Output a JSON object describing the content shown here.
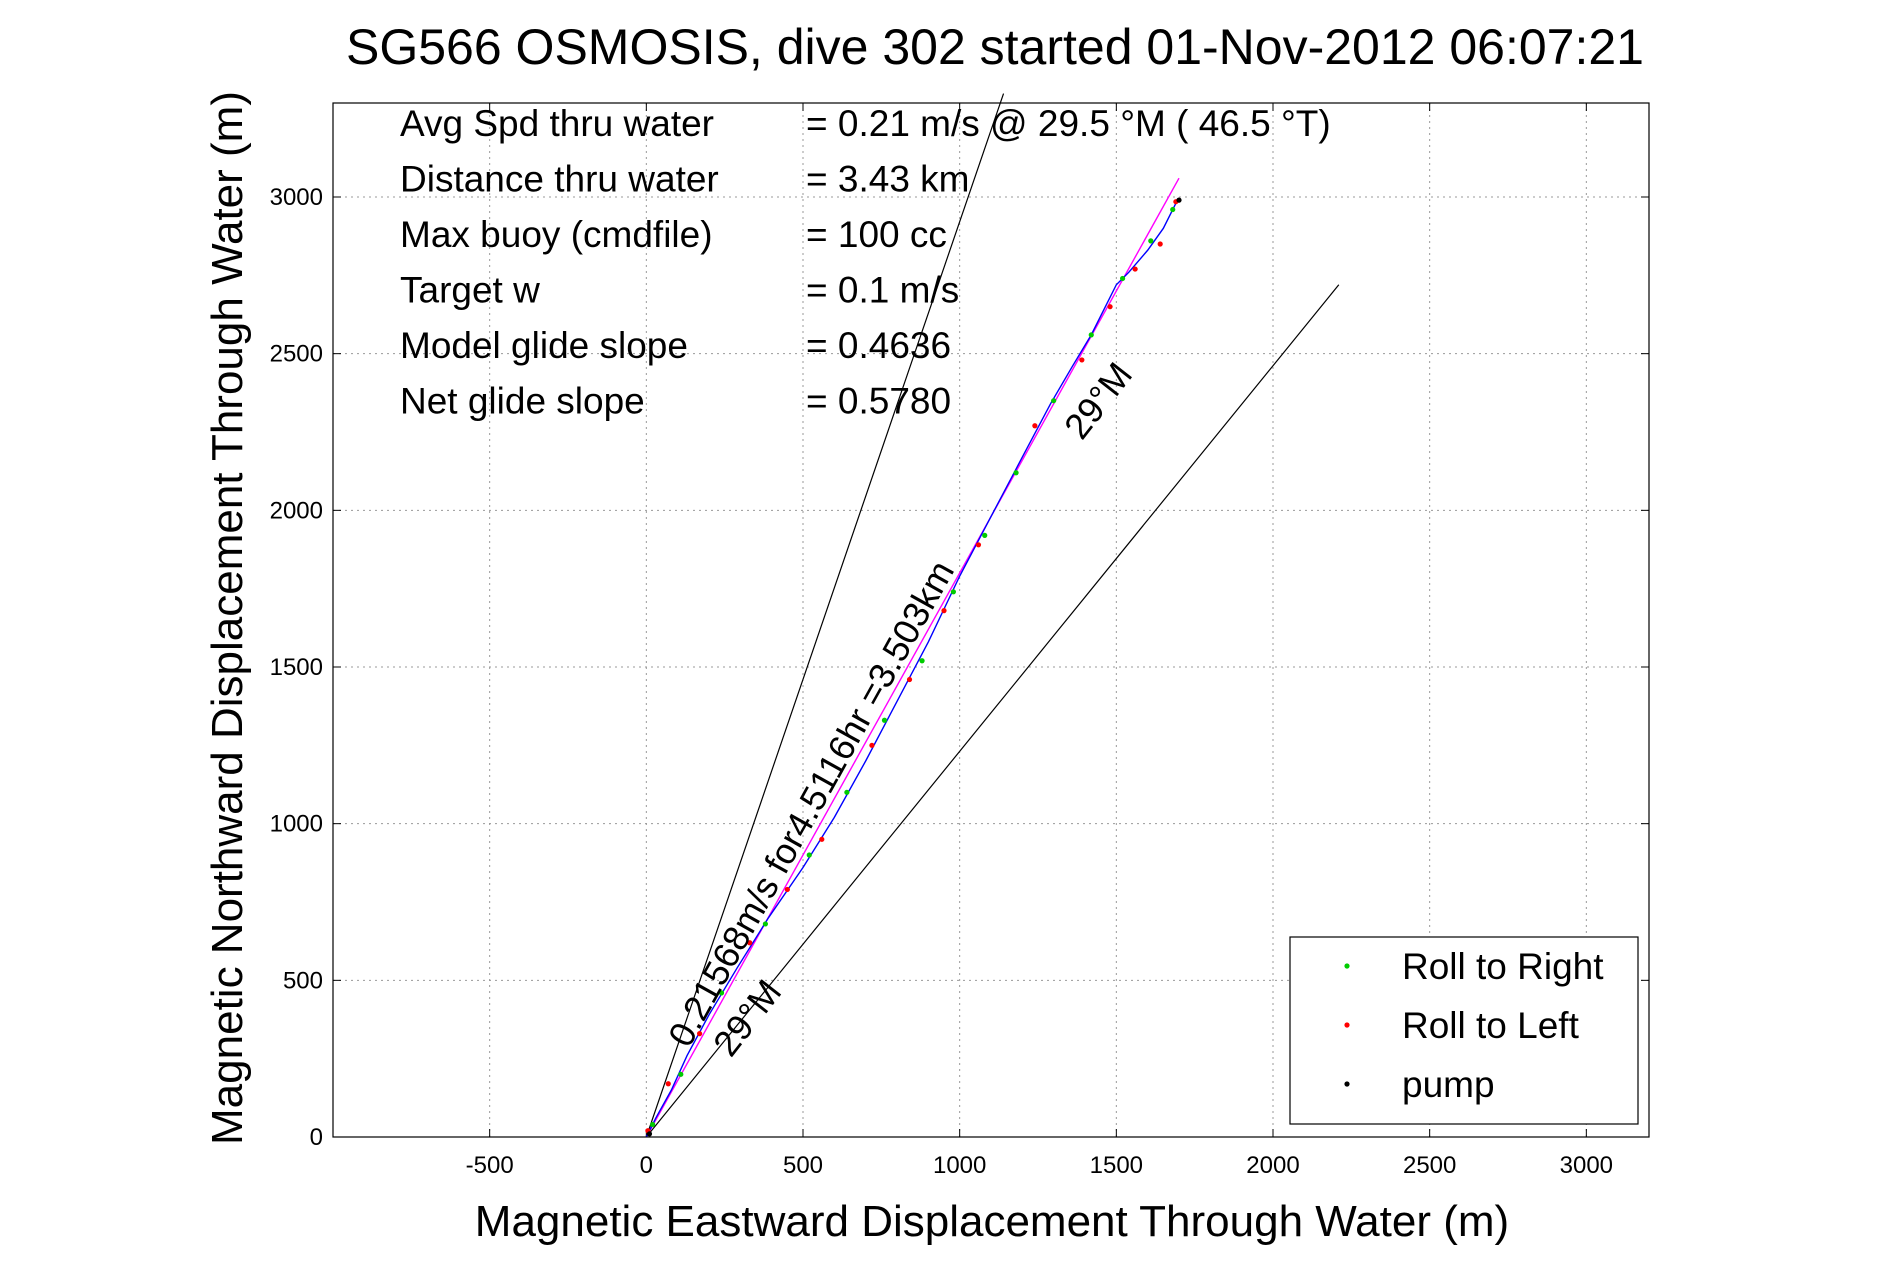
{
  "chart_data": {
    "type": "line",
    "title": "SG566 OSMOSIS, dive 302 started 01-Nov-2012 06:07:21",
    "xlabel": "Magnetic Eastward Displacement Through Water (m)",
    "ylabel": "Magnetic Northward Displacement Through Water (m)",
    "xlim": [
      -1000,
      3200
    ],
    "ylim": [
      0,
      3300
    ],
    "xticks": [
      -500,
      0,
      500,
      1000,
      1500,
      2000,
      2500,
      3000
    ],
    "yticks": [
      0,
      500,
      1000,
      1500,
      2000,
      2500,
      3000
    ],
    "grid": true,
    "stats": [
      {
        "label": "Avg Spd thru water",
        "value": "=  0.21 m/s @  29.5 °M ( 46.5 °T)"
      },
      {
        "label": "Distance thru water",
        "value": "=  3.43 km"
      },
      {
        "label": "Max buoy (cmdfile)",
        "value": "= 100 cc"
      },
      {
        "label": "Target w",
        "value": "= 0.1 m/s"
      },
      {
        "label": "Model glide slope",
        "value": "= 0.4636"
      },
      {
        "label": "Net glide slope",
        "value": "= 0.5780"
      }
    ],
    "annotations": {
      "track": "0.21568m/s for4.5116hr =3.503km",
      "heading_top": "29°M",
      "heading_bottom": "29°M"
    },
    "cone_lines": [
      {
        "x": [
          0,
          1140
        ],
        "y": [
          0,
          3330
        ]
      },
      {
        "x": [
          0,
          2210
        ],
        "y": [
          0,
          2720
        ]
      }
    ],
    "fit_line": {
      "color": "#ff00ff",
      "x": [
        0,
        1700
      ],
      "y": [
        0,
        3060
      ]
    },
    "track": {
      "color": "#0000ff",
      "x": [
        0,
        30,
        80,
        130,
        200,
        290,
        390,
        500,
        600,
        700,
        800,
        900,
        1000,
        1100,
        1200,
        1290,
        1360,
        1420,
        1470,
        1500,
        1540,
        1600,
        1650,
        1690
      ],
      "y": [
        0,
        60,
        150,
        260,
        390,
        540,
        700,
        860,
        1020,
        1200,
        1390,
        1580,
        1790,
        1980,
        2170,
        2340,
        2460,
        2560,
        2660,
        2720,
        2760,
        2830,
        2900,
        2980
      ]
    },
    "series": [
      {
        "name": "Roll to Right",
        "color": "#00cc00",
        "x": [
          20,
          110,
          240,
          380,
          520,
          640,
          760,
          880,
          980,
          1080,
          1180,
          1300,
          1420,
          1520,
          1610,
          1680
        ],
        "y": [
          40,
          200,
          460,
          680,
          900,
          1100,
          1330,
          1520,
          1740,
          1920,
          2120,
          2350,
          2560,
          2740,
          2860,
          2960
        ]
      },
      {
        "name": "Roll to Left",
        "color": "#ff0000",
        "x": [
          5,
          70,
          170,
          330,
          450,
          560,
          720,
          840,
          950,
          1060,
          1240,
          1390,
          1480,
          1560,
          1640,
          1690
        ],
        "y": [
          20,
          170,
          330,
          620,
          790,
          950,
          1250,
          1460,
          1680,
          1890,
          2270,
          2480,
          2650,
          2770,
          2850,
          2985
        ]
      },
      {
        "name": "pump",
        "color": "#000000",
        "x": [
          10,
          1700
        ],
        "y": [
          10,
          2990
        ]
      }
    ],
    "legend_position": "bottom-right"
  }
}
